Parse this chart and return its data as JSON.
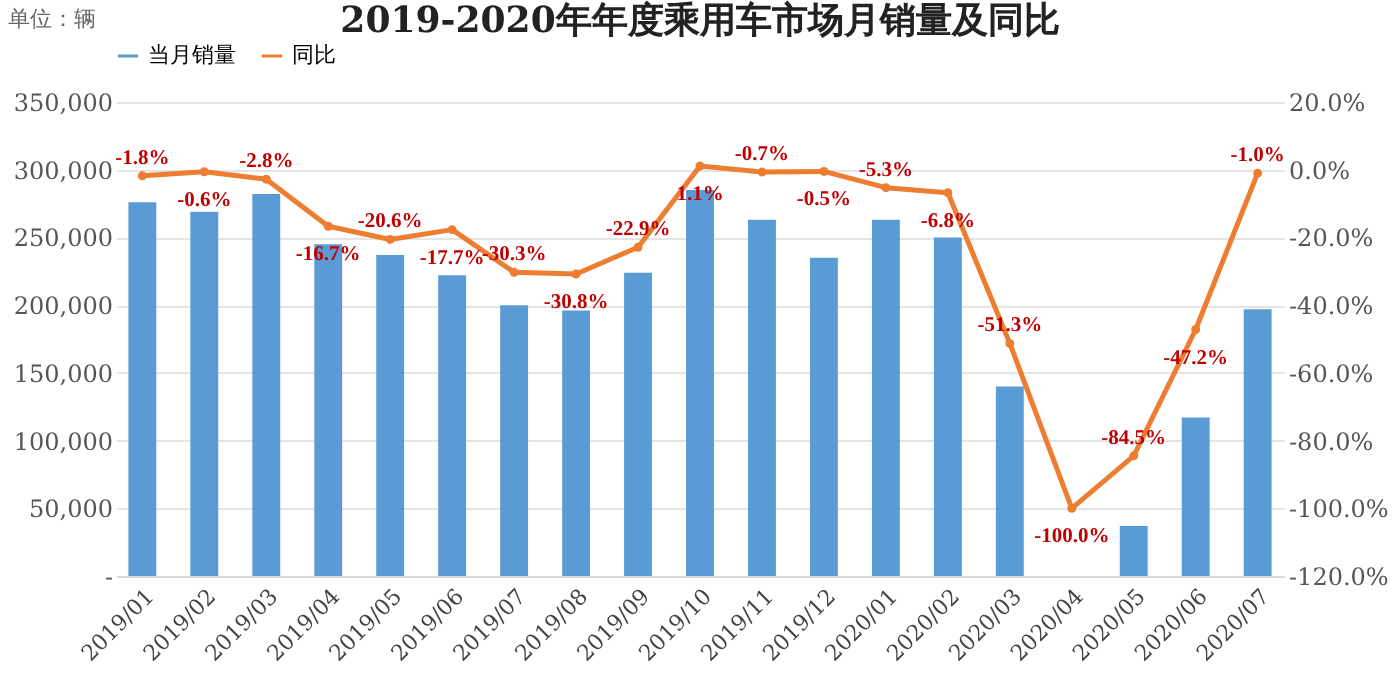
{
  "chart_data": {
    "type": "bar",
    "title": "2019-2020年年度乘用车市场月销量及同比",
    "annotations": [
      "单位：辆"
    ],
    "categories": [
      "2019/01",
      "2019/02",
      "2019/03",
      "2019/04",
      "2019/05",
      "2019/06",
      "2019/07",
      "2019/08",
      "2019/09",
      "2019/10",
      "2019/11",
      "2019/12",
      "2020/01",
      "2020/02",
      "2020/03",
      "2020/04",
      "2020/05",
      "2020/06",
      "2020/07"
    ],
    "series": [
      {
        "name": "当月销量",
        "color": "#5b9bd5",
        "values": [
          276000,
          269000,
          282000,
          245000,
          237000,
          222000,
          200000,
          196000,
          224000,
          285000,
          263000,
          235000,
          263000,
          250000,
          140000,
          0,
          37000,
          117000,
          197000
        ]
      },
      {
        "name": "同比",
        "type": "line",
        "axis": "y2",
        "color": "#ed7d31",
        "values": [
          -1.8,
          -0.6,
          -2.8,
          -16.7,
          -20.6,
          -17.7,
          -30.3,
          -30.8,
          -22.9,
          1.1,
          -0.7,
          -0.5,
          -5.3,
          -6.8,
          -51.3,
          -100.0,
          -84.5,
          -47.2,
          -1.0
        ],
        "value_labels": [
          "-1.8%",
          "-0.6%",
          "-2.8%",
          "-16.7%",
          "-20.6%",
          "-17.7%",
          "-30.3%",
          "-30.8%",
          "-22.9%",
          "1.1%",
          "-0.7%",
          "-0.5%",
          "-5.3%",
          "-6.8%",
          "-51.3%",
          "-100.0%",
          "-84.5%",
          "-47.2%",
          "-1.0%"
        ]
      }
    ],
    "ylim": [
      0,
      350000
    ],
    "yticks": [
      {
        "value": 0,
        "label": "-"
      },
      {
        "value": 50000,
        "label": "50,000"
      },
      {
        "value": 100000,
        "label": "100,000"
      },
      {
        "value": 150000,
        "label": "150,000"
      },
      {
        "value": 200000,
        "label": "200,000"
      },
      {
        "value": 250000,
        "label": "250,000"
      },
      {
        "value": 300000,
        "label": "300,000"
      },
      {
        "value": 350000,
        "label": "350,000"
      }
    ],
    "y2lim": [
      -120,
      20
    ],
    "y2ticks": [
      {
        "value": -120,
        "label": "-120.0%"
      },
      {
        "value": -100,
        "label": "-100.0%"
      },
      {
        "value": -80,
        "label": "-80.0%"
      },
      {
        "value": -60,
        "label": "-60.0%"
      },
      {
        "value": -40,
        "label": "-40.0%"
      },
      {
        "value": -20,
        "label": "-20.0%"
      },
      {
        "value": 0,
        "label": "0.0%"
      },
      {
        "value": 20,
        "label": "20.0%"
      }
    ],
    "grid": "y",
    "legend": "top",
    "marker": "circle",
    "line_style": "solid"
  }
}
